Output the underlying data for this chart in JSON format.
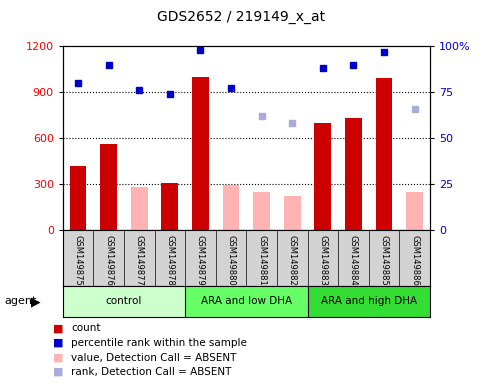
{
  "title": "GDS2652 / 219149_x_at",
  "samples": [
    "GSM149875",
    "GSM149876",
    "GSM149877",
    "GSM149878",
    "GSM149879",
    "GSM149880",
    "GSM149881",
    "GSM149882",
    "GSM149883",
    "GSM149884",
    "GSM149885",
    "GSM149886"
  ],
  "groups": [
    {
      "label": "control",
      "color": "#ccffcc",
      "start": 0,
      "end": 4
    },
    {
      "label": "ARA and low DHA",
      "color": "#66ff66",
      "start": 4,
      "end": 8
    },
    {
      "label": "ARA and high DHA",
      "color": "#33dd33",
      "start": 8,
      "end": 12
    }
  ],
  "bar_values": [
    420,
    560,
    null,
    310,
    1000,
    null,
    null,
    null,
    700,
    730,
    990,
    null
  ],
  "bar_absent_values": [
    null,
    null,
    280,
    null,
    null,
    295,
    250,
    225,
    null,
    null,
    null,
    250
  ],
  "rank_values": [
    80,
    90,
    76,
    74,
    98,
    77,
    null,
    null,
    88,
    90,
    97,
    null
  ],
  "rank_absent_values": [
    null,
    null,
    null,
    null,
    null,
    null,
    62,
    58,
    null,
    null,
    null,
    66
  ],
  "ylim_left": [
    0,
    1200
  ],
  "ylim_right": [
    0,
    100
  ],
  "yticks_left": [
    0,
    300,
    600,
    900,
    1200
  ],
  "yticks_right": [
    0,
    25,
    50,
    75,
    100
  ],
  "bar_color": "#cc0000",
  "bar_absent_color": "#ffb3b3",
  "rank_color": "#0000cc",
  "rank_absent_color": "#aaaadd",
  "grid_vals": [
    300,
    600,
    900
  ],
  "legend": [
    {
      "color": "#cc0000",
      "label": "count"
    },
    {
      "color": "#0000cc",
      "label": "percentile rank within the sample"
    },
    {
      "color": "#ffb3b3",
      "label": "value, Detection Call = ABSENT"
    },
    {
      "color": "#aaaadd",
      "label": "rank, Detection Call = ABSENT"
    }
  ]
}
